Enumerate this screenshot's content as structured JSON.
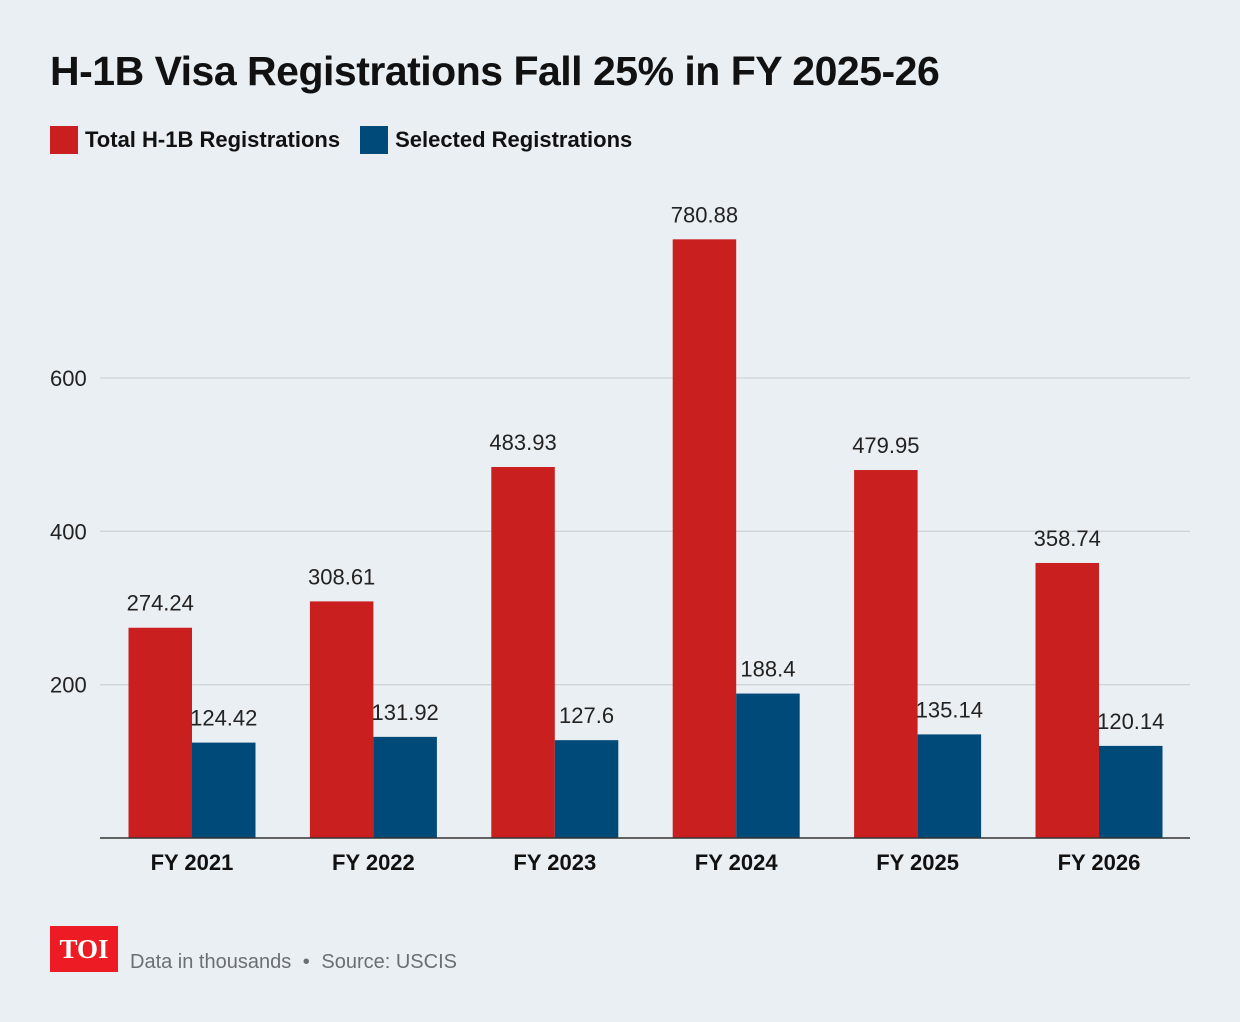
{
  "chart_data": {
    "type": "bar",
    "title": "H-1B Visa Registrations Fall 25% in FY 2025-26",
    "categories": [
      "FY 2021",
      "FY 2022",
      "FY 2023",
      "FY 2024",
      "FY 2025",
      "FY 2026"
    ],
    "series": [
      {
        "name": "Total H-1B Registrations",
        "color": "#c91f1f",
        "values": [
          274.24,
          308.61,
          483.93,
          780.88,
          479.95,
          358.74
        ]
      },
      {
        "name": "Selected Registrations",
        "color": "#004a7a",
        "values": [
          124.42,
          131.92,
          127.6,
          188.4,
          135.14,
          120.14
        ]
      }
    ],
    "yticks": [
      200,
      400,
      600
    ],
    "ylim": [
      0,
      820
    ],
    "grid": true,
    "legend": "top-left"
  },
  "footer": {
    "logo": "TOI",
    "note": "Data in thousands",
    "separator": "•",
    "source": "Source: USCIS"
  }
}
